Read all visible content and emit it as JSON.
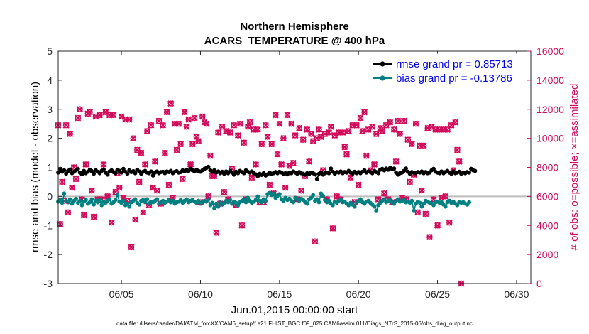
{
  "chart_data": {
    "type": "line",
    "title": "Northern Hemisphere",
    "subtitle": "ACARS_TEMPERATURE @ 400 hPa",
    "xlabel": "Jun.01,2015 00:00:00 start",
    "ylabel": "rmse and bias (model - observation)",
    "y2label": "# of obs: o=possible; ×=assimilated",
    "x_range_days": [
      1,
      30.9
    ],
    "xticks": [
      {
        "day": 5,
        "label": "06/05"
      },
      {
        "day": 10,
        "label": "06/10"
      },
      {
        "day": 15,
        "label": "06/15"
      },
      {
        "day": 20,
        "label": "06/20"
      },
      {
        "day": 25,
        "label": "06/25"
      },
      {
        "day": 30,
        "label": "06/30"
      }
    ],
    "ylim": [
      -3,
      5
    ],
    "yticks": [
      "-3",
      "-2",
      "-1",
      "0",
      "1",
      "2",
      "3",
      "4",
      "5"
    ],
    "y2lim": [
      0,
      16000
    ],
    "y2ticks": [
      "0",
      "2000",
      "4000",
      "6000",
      "8000",
      "10000",
      "12000",
      "14000",
      "16000"
    ],
    "grid": false,
    "legend_position": "top-right",
    "zero_line": 0,
    "sample_interval_hours": 3,
    "series": [
      {
        "name": "rmse",
        "legend": "rmse grand pr = 0.85713",
        "color": "#000000",
        "axis": "left",
        "values": [
          0.82,
          0.95,
          0.85,
          0.9,
          0.78,
          0.88,
          0.93,
          0.8,
          0.85,
          0.9,
          0.95,
          0.82,
          0.76,
          0.88,
          0.8,
          0.85,
          0.92,
          0.87,
          0.78,
          0.9,
          0.85,
          0.8,
          0.88,
          0.93,
          0.82,
          0.75,
          0.86,
          0.9,
          0.84,
          0.8,
          0.92,
          0.88,
          0.82,
          0.95,
          0.85,
          0.78,
          0.9,
          0.84,
          0.87,
          0.8,
          0.92,
          0.86,
          0.78,
          0.85,
          0.88,
          0.82,
          0.8,
          0.86,
          0.72,
          0.82,
          0.86,
          0.8,
          0.84,
          0.85,
          0.8,
          0.86,
          0.84,
          0.88,
          0.8,
          0.85,
          0.87,
          0.82,
          0.84,
          0.9,
          0.86,
          0.92,
          0.88,
          0.95,
          0.9,
          0.86,
          0.92,
          0.88,
          0.85,
          0.9,
          0.95,
          0.98,
          1.02,
          0.9,
          0.85,
          0.9,
          0.82,
          0.86,
          0.8,
          0.85,
          0.78,
          0.86,
          0.8,
          0.88,
          0.82,
          0.75,
          0.85,
          0.8,
          0.88,
          0.84,
          0.8,
          0.9,
          0.85,
          0.82,
          0.86,
          0.8,
          0.76,
          0.7,
          0.78,
          0.74,
          0.8,
          0.72,
          0.76,
          0.82,
          0.78,
          0.8,
          0.84,
          0.8,
          0.85,
          0.82,
          0.78,
          0.8,
          0.76,
          0.82,
          0.8,
          0.86,
          0.82,
          0.78,
          0.84,
          0.8,
          0.78,
          0.75,
          0.8,
          0.77,
          0.82,
          0.8,
          0.76,
          0.6,
          0.78,
          0.82,
          0.75,
          0.8,
          0.82,
          0.8,
          0.96,
          0.85,
          0.78,
          0.84,
          0.82,
          0.86,
          0.8,
          0.84,
          0.82,
          0.88,
          0.82,
          0.78,
          0.85,
          0.8,
          0.84,
          0.8,
          0.85,
          0.9,
          0.82,
          0.86,
          0.84,
          0.8,
          0.88,
          0.84,
          0.8,
          0.92,
          0.95,
          0.9,
          0.96,
          0.92,
          0.98,
          0.94,
          0.96,
          0.82,
          0.75,
          0.8,
          0.82,
          0.88,
          0.96,
          0.85,
          0.78,
          0.84,
          0.82,
          0.8,
          0.84,
          0.82,
          0.86,
          0.8,
          0.84,
          0.8,
          0.82,
          0.9,
          0.95,
          0.85,
          0.82,
          0.8,
          0.86,
          0.8,
          0.84,
          0.88,
          0.82,
          0.78,
          0.86,
          0.8,
          0.82,
          0.85,
          0.78,
          0.82,
          0.8,
          0.84,
          0.82,
          0.95,
          0.9,
          0.88
        ]
      },
      {
        "name": "bias",
        "legend": "bias grand pr = -0.13786",
        "color": "#008080",
        "axis": "left",
        "values": [
          -0.18,
          -0.12,
          -0.22,
          0.1,
          -0.15,
          -0.2,
          -0.1,
          -0.25,
          -0.15,
          -0.08,
          -0.22,
          -0.15,
          -0.3,
          -0.18,
          -0.12,
          -0.25,
          -0.2,
          -0.1,
          -0.28,
          -0.15,
          -0.2,
          -0.12,
          -0.3,
          -0.18,
          -0.22,
          -0.15,
          -0.1,
          -0.25,
          -0.2,
          -0.12,
          0.05,
          -0.18,
          -0.22,
          -0.15,
          -0.3,
          -0.25,
          -0.35,
          -0.2,
          -0.15,
          -0.1,
          -0.22,
          -0.28,
          -0.15,
          -0.12,
          -0.2,
          -0.1,
          -0.25,
          -0.18,
          -0.2,
          -0.15,
          -0.1,
          -0.25,
          -0.2,
          -0.15,
          -0.22,
          -0.18,
          -0.12,
          -0.2,
          -0.15,
          -0.25,
          -0.2,
          -0.18,
          -0.12,
          -0.22,
          -0.15,
          -0.1,
          -0.2,
          -0.15,
          -0.12,
          -0.18,
          -0.22,
          -0.15,
          -0.25,
          -0.2,
          -0.15,
          -0.18,
          -0.1,
          -0.3,
          -0.22,
          -0.4,
          -0.25,
          -0.35,
          -0.2,
          -0.28,
          -0.22,
          -0.15,
          -0.2,
          -0.12,
          -0.25,
          -0.18,
          -0.22,
          -0.3,
          -0.2,
          -0.15,
          -0.1,
          -0.2,
          -0.05,
          -0.15,
          -0.22,
          -0.18,
          -0.12,
          0.0,
          -0.15,
          -0.2,
          -0.1,
          -0.15,
          0.08,
          0.12,
          0.05,
          0.1,
          -0.05,
          0.02,
          0.08,
          -0.1,
          -0.15,
          -0.05,
          -0.12,
          -0.08,
          -0.15,
          -0.2,
          -0.05,
          -0.1,
          -0.15,
          -0.08,
          -0.12,
          -0.2,
          -0.25,
          -0.1,
          -0.05,
          0.05,
          -0.15,
          -0.1,
          -0.2,
          0.1,
          0.02,
          -0.12,
          -0.2,
          -0.15,
          -0.25,
          -0.3,
          -0.18,
          -0.22,
          -0.15,
          -0.12,
          -0.2,
          -0.18,
          -0.25,
          -0.3,
          -0.22,
          -0.28,
          -0.35,
          -0.2,
          -0.15,
          -0.1,
          -0.2,
          -0.25,
          -0.18,
          -0.15,
          -0.22,
          -0.28,
          -0.35,
          -0.5,
          -0.3,
          -0.22,
          -0.15,
          -0.1,
          -0.2,
          -0.15,
          -0.12,
          -0.2,
          -0.25,
          -0.15,
          -0.1,
          -0.18,
          -0.15,
          -0.12,
          -0.2,
          -0.18,
          -0.22,
          -0.15,
          -0.5,
          -0.25,
          -0.18,
          -0.22,
          -0.35,
          -0.25,
          -0.15,
          -0.18,
          -0.22,
          -0.25,
          -0.3,
          -0.2,
          -0.18,
          -0.22,
          -0.2,
          -0.28,
          -0.35,
          -0.2,
          -0.15,
          -0.22,
          -0.18,
          -0.25,
          -0.3,
          -0.2,
          -0.22,
          -0.2,
          -0.25,
          -0.28,
          -0.2
        ]
      },
      {
        "name": "obs_possible",
        "legend": "# of obs: o=possible",
        "color": "#d10a5a",
        "axis": "right",
        "values": [
          10900,
          4100,
          7000,
          5700,
          10900,
          4900,
          10300,
          6600,
          8000,
          7200,
          11400,
          12000,
          5800,
          4700,
          8200,
          11700,
          11800,
          6400,
          4600,
          11500,
          5800,
          11600,
          5800,
          8200,
          11800,
          6000,
          11600,
          4200,
          11600,
          6300,
          7600,
          6600,
          11500,
          5900,
          11300,
          5700,
          11300,
          2500,
          10000,
          4400,
          9200,
          7000,
          9000,
          4900,
          8200,
          10500,
          5400,
          10900,
          6600,
          8400,
          6400,
          11200,
          5500,
          10900,
          9000,
          11800,
          6800,
          12400,
          5900,
          11000,
          9200,
          11000,
          9600,
          7200,
          11800,
          10800,
          11300,
          8200,
          9600,
          11400,
          10100,
          9800,
          5600,
          11500,
          11100,
          11000,
          6000,
          8800,
          7400,
          7400,
          3500,
          10400,
          5500,
          10800,
          6300,
          10500,
          5800,
          10400,
          7900,
          10900,
          5400,
          10200,
          11000,
          4000,
          9700,
          5800,
          10800,
          11100,
          7300,
          10600,
          8200,
          10600,
          5600,
          9600,
          5600,
          10900,
          10100,
          6800,
          9600,
          6200,
          11600,
          8900,
          11000,
          8200,
          10000,
          6600,
          11600,
          8100,
          11000,
          8300,
          10200,
          5800,
          10700,
          6400,
          9900,
          7400,
          10600,
          8400,
          10300,
          9800,
          2900,
          10000,
          10600,
          10100,
          7800,
          10300,
          5800,
          10400,
          10800,
          3800,
          10200,
          6000,
          10400,
          5800,
          10400,
          9400,
          8900,
          10500,
          7300,
          10900,
          5600,
          10900,
          6800,
          11400,
          10500,
          11800,
          8800,
          10600,
          7800,
          10800,
          8200,
          10300,
          5800,
          10700,
          10500,
          6200,
          10900,
          5800,
          11100,
          5600,
          10600,
          8400,
          11200,
          10300,
          5900,
          11200,
          5800,
          9900,
          7000,
          9600,
          7500,
          11000,
          4900,
          9500,
          6400,
          9500,
          4800,
          10700,
          3200,
          10800,
          5800,
          10600,
          4000,
          10600,
          5900,
          10600,
          6000,
          10600,
          4200,
          10900,
          7800,
          11100,
          9200,
          8400,
          0
        ]
      },
      {
        "name": "obs_assimilated",
        "legend": "×=assimilated",
        "color": "#d10a5a",
        "axis": "right",
        "values": [
          10900,
          4100,
          7000,
          5700,
          10900,
          4900,
          10300,
          6600,
          8000,
          7200,
          11400,
          12000,
          5800,
          4700,
          8200,
          11700,
          11800,
          6400,
          4600,
          11500,
          5800,
          11600,
          5800,
          8200,
          11800,
          6000,
          11600,
          4200,
          11600,
          6300,
          7600,
          6600,
          11500,
          5900,
          11300,
          5700,
          11300,
          2500,
          10000,
          4400,
          9200,
          7000,
          9000,
          4900,
          8200,
          10500,
          5400,
          10900,
          6600,
          8400,
          6400,
          11200,
          5500,
          10900,
          9000,
          11800,
          6800,
          12400,
          5900,
          11000,
          9200,
          11000,
          9600,
          7200,
          11800,
          10800,
          11300,
          8200,
          9600,
          11400,
          10100,
          9800,
          5600,
          11500,
          11100,
          11000,
          6000,
          8800,
          7400,
          7400,
          3500,
          10400,
          5500,
          10800,
          6300,
          10500,
          5800,
          10400,
          7900,
          10900,
          5400,
          10200,
          11000,
          4000,
          9700,
          5800,
          10800,
          11100,
          7300,
          10600,
          8200,
          10600,
          5600,
          9600,
          5600,
          10900,
          10100,
          6800,
          9600,
          6200,
          11600,
          8900,
          11000,
          8200,
          10000,
          6600,
          11600,
          8100,
          11000,
          8300,
          10200,
          5800,
          10700,
          6400,
          9900,
          7400,
          10600,
          8400,
          10300,
          9800,
          2900,
          10000,
          10600,
          10100,
          7800,
          10300,
          5800,
          10400,
          10800,
          3800,
          10200,
          6000,
          10400,
          5800,
          10400,
          9400,
          8900,
          10500,
          7300,
          10900,
          5600,
          10900,
          6800,
          11400,
          10500,
          11800,
          8800,
          10600,
          7800,
          10800,
          8200,
          10300,
          5800,
          10700,
          10500,
          6200,
          10900,
          5800,
          11100,
          5600,
          10600,
          8400,
          11200,
          10300,
          5900,
          11200,
          5800,
          9900,
          7000,
          9600,
          7500,
          11000,
          4900,
          9500,
          6400,
          9500,
          4800,
          10700,
          3200,
          10800,
          5800,
          10600,
          4000,
          10600,
          5900,
          10600,
          6000,
          10600,
          4200,
          10900,
          7800,
          11100,
          9200,
          8400,
          0
        ]
      }
    ]
  },
  "footer": {
    "data_file": "data file: /Users/raeder/DAI/ATM_forcXX/CAM6_setup/f.e21.FHIST_BGC.f09_025.CAM6assim.011/Diags_NTrS_2015-06/obs_diag_output.nc"
  }
}
